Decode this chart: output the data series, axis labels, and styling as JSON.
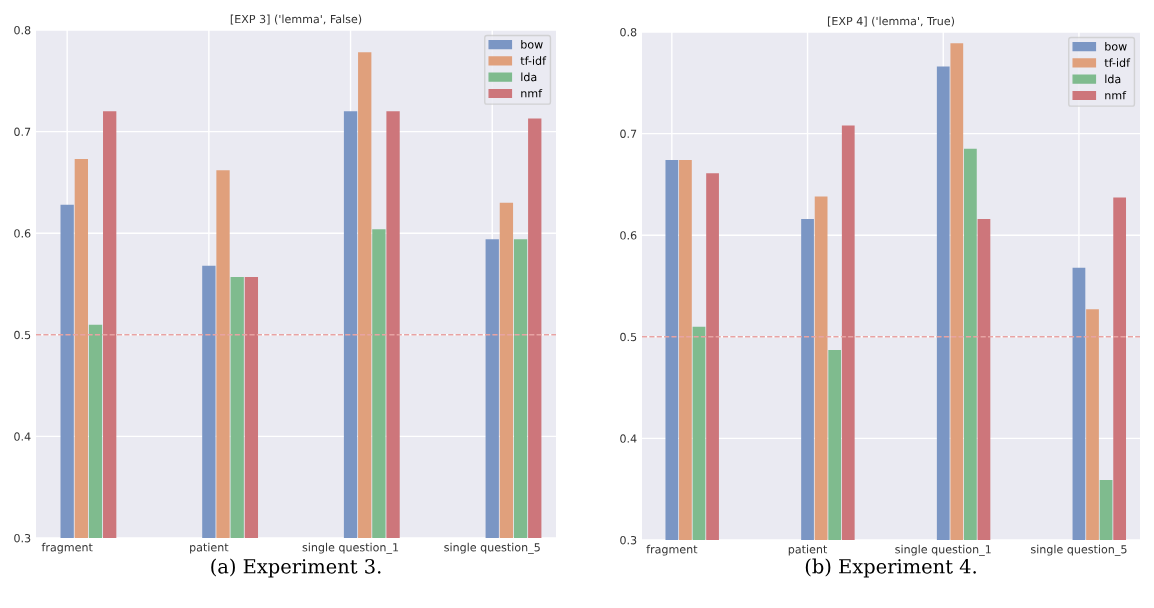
{
  "chart_data": [
    {
      "type": "bar",
      "title": "[EXP 3] ('lemma', False)",
      "categories": [
        "fragment",
        "patient",
        "single question_1",
        "single question_5"
      ],
      "series": [
        {
          "name": "bow",
          "color": "#7b96c4",
          "values": [
            0.628,
            0.568,
            0.72,
            0.594
          ]
        },
        {
          "name": "tf-idf",
          "color": "#e0a07c",
          "values": [
            0.673,
            0.662,
            0.778,
            0.63
          ]
        },
        {
          "name": "lda",
          "color": "#7fbb8e",
          "values": [
            0.51,
            0.557,
            0.604,
            0.594
          ]
        },
        {
          "name": "nmf",
          "color": "#cd767b",
          "values": [
            0.72,
            0.557,
            0.72,
            0.713
          ]
        }
      ],
      "ylim": [
        0.3,
        0.8
      ],
      "yticks": [
        0.3,
        0.4,
        0.5,
        0.6,
        0.7,
        0.8
      ],
      "grid": true,
      "legend": "top right",
      "ref_lines": [
        {
          "axis": "y",
          "value": 0.5,
          "color": "#e8a3a3",
          "line_style": "dashed"
        }
      ],
      "annotations": [
        "(a) Experiment 3."
      ]
    },
    {
      "type": "bar",
      "title": "[EXP 4] ('lemma', True)",
      "categories": [
        "fragment",
        "patient",
        "single question_1",
        "single question_5"
      ],
      "series": [
        {
          "name": "bow",
          "color": "#7b96c4",
          "values": [
            0.674,
            0.616,
            0.766,
            0.568
          ]
        },
        {
          "name": "tf-idf",
          "color": "#e0a07c",
          "values": [
            0.674,
            0.638,
            0.789,
            0.527
          ]
        },
        {
          "name": "lda",
          "color": "#7fbb8e",
          "values": [
            0.51,
            0.487,
            0.685,
            0.359
          ]
        },
        {
          "name": "nmf",
          "color": "#cd767b",
          "values": [
            0.661,
            0.708,
            0.616,
            0.637
          ]
        }
      ],
      "ylim": [
        0.3,
        0.8
      ],
      "yticks": [
        0.3,
        0.4,
        0.5,
        0.6,
        0.7,
        0.8
      ],
      "grid": true,
      "legend": "top right",
      "ref_lines": [
        {
          "axis": "y",
          "value": 0.5,
          "color": "#e8a3a3",
          "line_style": "dashed"
        }
      ],
      "annotations": [
        "(b) Experiment 4."
      ]
    }
  ]
}
